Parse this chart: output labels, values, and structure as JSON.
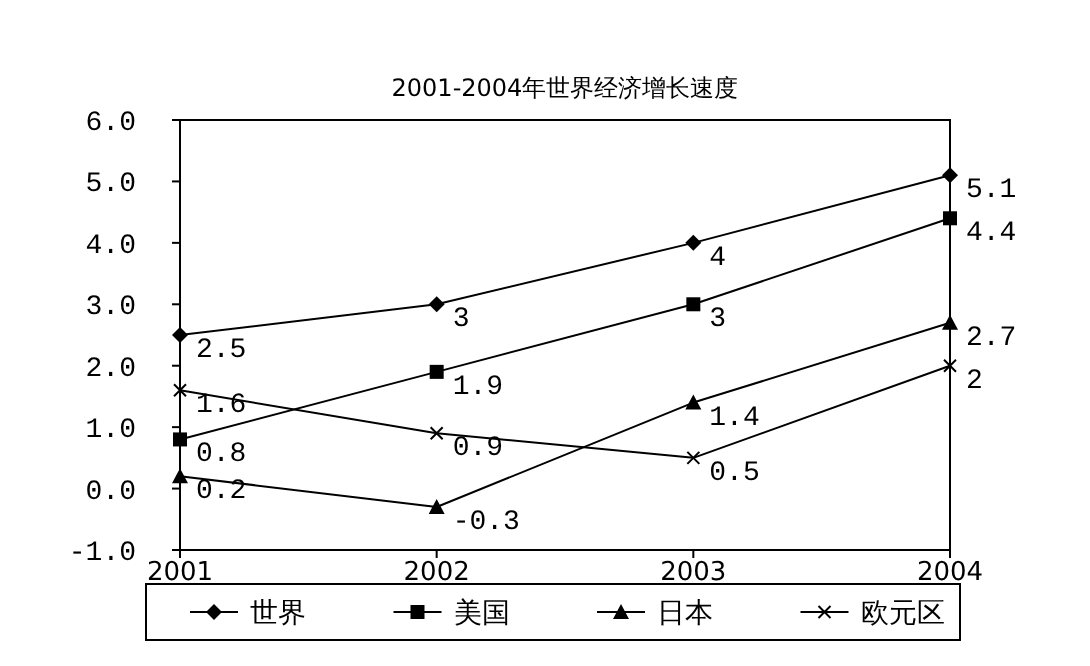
{
  "chart_data": {
    "type": "line",
    "title": "2001-2004年世界经济增长速度",
    "categories": [
      "2001",
      "2002",
      "2003",
      "2004"
    ],
    "series": [
      {
        "name": "世界",
        "color": "#000000",
        "marker": "diamond",
        "values": [
          2.5,
          3,
          4,
          5.1
        ]
      },
      {
        "name": "美国",
        "color": "#000000",
        "marker": "square",
        "values": [
          0.8,
          1.9,
          3,
          4.4
        ]
      },
      {
        "name": "日本",
        "color": "#000000",
        "marker": "triangle",
        "values": [
          0.2,
          -0.3,
          1.4,
          2.7
        ]
      },
      {
        "name": "欧元区",
        "color": "#000000",
        "marker": "cross",
        "values": [
          1.6,
          0.9,
          0.5,
          2
        ]
      }
    ],
    "ylim": [
      -1,
      6
    ],
    "yticks": [
      {
        "value": -1,
        "label": "-1.0"
      },
      {
        "value": 0,
        "label": "0.0"
      },
      {
        "value": 1,
        "label": "1.0"
      },
      {
        "value": 2,
        "label": "2.0"
      },
      {
        "value": 3,
        "label": "3.0"
      },
      {
        "value": 4,
        "label": "4.0"
      },
      {
        "value": 5,
        "label": "5.0"
      },
      {
        "value": 6,
        "label": "6.0"
      }
    ],
    "data_labels": true,
    "legend": "bottom",
    "grid": false,
    "line_style": "solid"
  }
}
